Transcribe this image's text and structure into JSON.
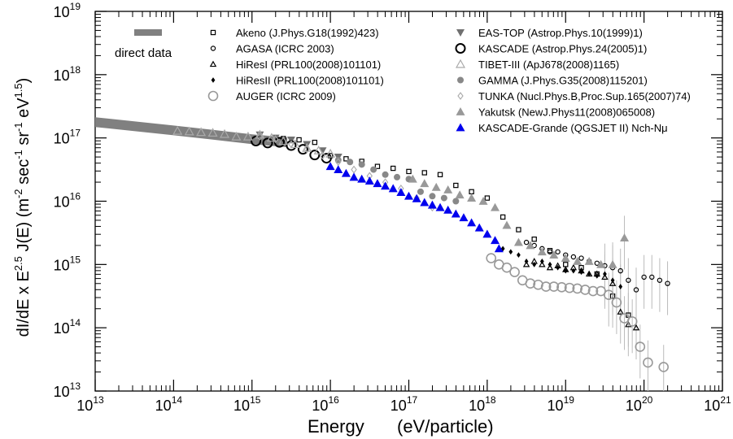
{
  "chart_data": {
    "type": "scatter",
    "xlabel": "Energy",
    "xlabel_units": "(eV/particle)",
    "ylabel_parts": [
      "dI/dE x E",
      "2.5",
      " J(E) (m",
      "-2",
      " sec",
      "-1",
      " sr",
      "-1",
      " eV",
      "1.5",
      ")"
    ],
    "xscale": "log",
    "yscale": "log",
    "xlim_log10": [
      13,
      21
    ],
    "ylim_log10": [
      13,
      19
    ],
    "x_tick_labels": [
      {
        "base": "10",
        "exp": "13",
        "log": 13
      },
      {
        "base": "10",
        "exp": "14",
        "log": 14
      },
      {
        "base": "10",
        "exp": "15",
        "log": 15
      },
      {
        "base": "10",
        "exp": "16",
        "log": 16
      },
      {
        "base": "10",
        "exp": "17",
        "log": 17
      },
      {
        "base": "10",
        "exp": "18",
        "log": 18
      },
      {
        "base": "10",
        "exp": "19",
        "log": 19
      },
      {
        "base": "10",
        "exp": "20",
        "log": 20
      },
      {
        "base": "10",
        "exp": "21",
        "log": 21
      }
    ],
    "y_tick_labels": [
      {
        "base": "10",
        "exp": "13",
        "log": 13
      },
      {
        "base": "10",
        "exp": "14",
        "log": 14
      },
      {
        "base": "10",
        "exp": "15",
        "log": 15
      },
      {
        "base": "10",
        "exp": "16",
        "log": 16
      },
      {
        "base": "10",
        "exp": "17",
        "log": 17
      },
      {
        "base": "10",
        "exp": "18",
        "log": 18
      },
      {
        "base": "10",
        "exp": "19",
        "log": 19
      }
    ],
    "grid": false,
    "legend_placement": "top",
    "direct_data": {
      "name": "direct data",
      "color": "#808080",
      "band": [
        [
          13.0,
          17.25
        ],
        [
          14.0,
          17.12
        ],
        [
          15.0,
          16.98
        ],
        [
          15.45,
          16.93
        ]
      ]
    },
    "series": [
      {
        "name": "Akeno (J.Phys.G18(1992)423)",
        "marker": "square-open",
        "color": "#000000",
        "points": [
          [
            15.4,
            16.99
          ],
          [
            15.6,
            16.97
          ],
          [
            15.8,
            16.93
          ],
          [
            16.0,
            16.72
          ],
          [
            16.2,
            16.67
          ],
          [
            16.4,
            16.63
          ],
          [
            16.6,
            16.55
          ],
          [
            16.8,
            16.52
          ],
          [
            17.0,
            16.47
          ],
          [
            17.2,
            16.45
          ],
          [
            17.4,
            16.42
          ],
          [
            17.6,
            16.25
          ],
          [
            17.8,
            16.15
          ],
          [
            18.0,
            16.05
          ],
          [
            18.2,
            15.75
          ],
          [
            18.4,
            15.55
          ],
          [
            18.6,
            15.4
          ],
          [
            18.8,
            15.22
          ],
          [
            19.0,
            15.0
          ],
          [
            19.2,
            14.95
          ],
          [
            19.4,
            14.85
          ],
          [
            19.6,
            14.5
          ],
          [
            19.8,
            14.2
          ]
        ]
      },
      {
        "name": "AGASA (ICRC 2003)",
        "marker": "circle-open-small",
        "color": "#000000",
        "points": [
          [
            18.5,
            15.35
          ],
          [
            18.6,
            15.3
          ],
          [
            18.7,
            15.25
          ],
          [
            18.8,
            15.2
          ],
          [
            18.9,
            15.2
          ],
          [
            19.0,
            15.15
          ],
          [
            19.1,
            15.12
          ],
          [
            19.2,
            15.1
          ],
          [
            19.3,
            15.05
          ],
          [
            19.4,
            15.02
          ],
          [
            19.5,
            14.98
          ],
          [
            19.6,
            14.95
          ],
          [
            19.7,
            14.9
          ],
          [
            19.8,
            14.75
          ],
          [
            19.9,
            14.6
          ],
          [
            20.0,
            14.8
          ],
          [
            20.1,
            14.8
          ],
          [
            20.2,
            14.75
          ],
          [
            20.3,
            14.7
          ]
        ]
      },
      {
        "name": "HiResI (PRL100(2008)101101)",
        "marker": "triangle-open-small",
        "color": "#000000",
        "points": [
          [
            18.5,
            15.0
          ],
          [
            18.6,
            15.05
          ],
          [
            18.7,
            15.0
          ],
          [
            18.8,
            14.95
          ],
          [
            18.9,
            14.98
          ],
          [
            19.0,
            14.92
          ],
          [
            19.1,
            14.95
          ],
          [
            19.2,
            14.9
          ],
          [
            19.3,
            14.85
          ],
          [
            19.4,
            14.85
          ],
          [
            19.5,
            14.8
          ],
          [
            19.6,
            14.7
          ],
          [
            19.7,
            14.25
          ],
          [
            19.8,
            14.05
          ],
          [
            19.9,
            14.0
          ]
        ]
      },
      {
        "name": "HiResII (PRL100(2008)101101)",
        "marker": "diamond-filled-small",
        "color": "#000000",
        "points": [
          [
            18.2,
            15.25
          ],
          [
            18.3,
            15.2
          ],
          [
            18.4,
            15.15
          ],
          [
            18.5,
            15.05
          ],
          [
            18.6,
            15.0
          ],
          [
            18.7,
            15.05
          ],
          [
            18.8,
            15.0
          ],
          [
            18.9,
            14.95
          ],
          [
            19.0,
            14.9
          ],
          [
            19.1,
            14.9
          ],
          [
            19.2,
            14.88
          ],
          [
            19.3,
            14.85
          ],
          [
            19.4,
            14.82
          ],
          [
            19.5,
            14.85
          ],
          [
            19.6,
            14.75
          ],
          [
            19.7,
            14.65
          ]
        ]
      },
      {
        "name": "AUGER (ICRC 2009)",
        "marker": "circle-open-large",
        "color": "#999999",
        "points": [
          [
            18.05,
            15.1
          ],
          [
            18.15,
            15.0
          ],
          [
            18.25,
            14.95
          ],
          [
            18.35,
            14.88
          ],
          [
            18.45,
            14.75
          ],
          [
            18.55,
            14.7
          ],
          [
            18.65,
            14.68
          ],
          [
            18.75,
            14.65
          ],
          [
            18.85,
            14.65
          ],
          [
            18.95,
            14.64
          ],
          [
            19.05,
            14.63
          ],
          [
            19.15,
            14.62
          ],
          [
            19.25,
            14.6
          ],
          [
            19.35,
            14.58
          ],
          [
            19.45,
            14.58
          ],
          [
            19.55,
            14.52
          ],
          [
            19.65,
            14.4
          ],
          [
            19.75,
            14.15
          ],
          [
            19.85,
            14.1
          ],
          [
            19.95,
            13.7
          ],
          [
            20.05,
            13.45
          ],
          [
            20.25,
            13.38
          ]
        ]
      },
      {
        "name": "EAS-TOP (Astrop.Phys.10(1999)1)",
        "marker": "triangle-down-filled",
        "color": "#707070",
        "points": [
          [
            15.1,
            17.05
          ],
          [
            15.3,
            17.0
          ],
          [
            15.5,
            16.97
          ],
          [
            15.7,
            16.9
          ],
          [
            15.9,
            16.8
          ],
          [
            16.1,
            16.7
          ]
        ]
      },
      {
        "name": "KASCADE (Astrop.Phys.24(2005)1)",
        "marker": "circle-open-bold",
        "color": "#000000",
        "points": [
          [
            15.05,
            16.95
          ],
          [
            15.2,
            16.92
          ],
          [
            15.35,
            16.93
          ],
          [
            15.5,
            16.88
          ],
          [
            15.65,
            16.82
          ],
          [
            15.8,
            16.73
          ],
          [
            15.95,
            16.68
          ]
        ]
      },
      {
        "name": "TIBET-III (ApJ678(2008)1165)",
        "marker": "triangle-open",
        "color": "#aaaaaa",
        "points": [
          [
            14.05,
            17.11
          ],
          [
            14.2,
            17.1
          ],
          [
            14.35,
            17.09
          ],
          [
            14.5,
            17.08
          ],
          [
            14.65,
            17.06
          ],
          [
            14.8,
            17.02
          ],
          [
            14.95,
            17.02
          ],
          [
            15.1,
            17.05
          ],
          [
            15.25,
            17.0
          ],
          [
            15.4,
            16.95
          ],
          [
            15.55,
            16.9
          ],
          [
            15.7,
            16.84
          ],
          [
            15.85,
            16.8
          ],
          [
            16.0,
            16.75
          ]
        ]
      },
      {
        "name": "GAMMA (J.Phys.G35(2008)115201)",
        "marker": "circle-filled",
        "color": "#888888",
        "points": [
          [
            16.1,
            16.65
          ],
          [
            16.25,
            16.62
          ],
          [
            16.4,
            16.58
          ],
          [
            16.55,
            16.5
          ],
          [
            16.7,
            16.42
          ],
          [
            16.85,
            16.38
          ],
          [
            17.0,
            16.35
          ],
          [
            17.15,
            16.15
          ],
          [
            17.3,
            16.08
          ],
          [
            17.45,
            16.05
          ],
          [
            17.6,
            16.0
          ]
        ]
      },
      {
        "name": "TUNKA (Nucl.Phys.B,Proc.Sup.165(2007)74)",
        "marker": "diamond-open",
        "color": "#aaaaaa",
        "points": [
          [
            15.1,
            17.02
          ],
          [
            15.3,
            16.98
          ],
          [
            15.5,
            16.9
          ],
          [
            15.7,
            16.82
          ],
          [
            15.9,
            16.72
          ],
          [
            16.1,
            16.62
          ],
          [
            16.3,
            16.5
          ],
          [
            16.5,
            16.4
          ],
          [
            16.7,
            16.3
          ],
          [
            16.9,
            16.2
          ],
          [
            17.1,
            16.05
          ],
          [
            17.3,
            15.9
          ]
        ]
      },
      {
        "name": "Yakutsk (NewJ.Phys11(2008)065008)",
        "marker": "triangle-filled",
        "color": "#999999",
        "points": [
          [
            17.05,
            16.35
          ],
          [
            17.2,
            16.28
          ],
          [
            17.35,
            16.22
          ],
          [
            17.5,
            16.18
          ],
          [
            17.65,
            16.1
          ],
          [
            17.8,
            16.05
          ],
          [
            17.95,
            16.0
          ],
          [
            18.1,
            15.9
          ],
          [
            18.25,
            15.62
          ],
          [
            18.4,
            15.35
          ],
          [
            18.55,
            15.3
          ],
          [
            18.7,
            15.2
          ],
          [
            18.85,
            15.15
          ],
          [
            19.0,
            15.1
          ],
          [
            19.15,
            15.05
          ],
          [
            19.3,
            15.05
          ],
          [
            19.45,
            15.0
          ],
          [
            19.6,
            15.0
          ],
          [
            19.75,
            15.42
          ]
        ]
      },
      {
        "name": "KASCADE-Grande (QGSJET II) Nch-Nμ",
        "marker": "triangle-filled",
        "color": "#0000ee",
        "points": [
          [
            16.0,
            16.55
          ],
          [
            16.1,
            16.5
          ],
          [
            16.2,
            16.44
          ],
          [
            16.3,
            16.38
          ],
          [
            16.4,
            16.35
          ],
          [
            16.5,
            16.32
          ],
          [
            16.6,
            16.28
          ],
          [
            16.7,
            16.24
          ],
          [
            16.8,
            16.2
          ],
          [
            16.9,
            16.14
          ],
          [
            17.0,
            16.08
          ],
          [
            17.1,
            16.04
          ],
          [
            17.2,
            15.98
          ],
          [
            17.3,
            15.94
          ],
          [
            17.4,
            15.9
          ],
          [
            17.5,
            15.86
          ],
          [
            17.6,
            15.8
          ],
          [
            17.7,
            15.74
          ],
          [
            17.8,
            15.66
          ],
          [
            17.9,
            15.58
          ],
          [
            18.0,
            15.48
          ],
          [
            18.1,
            15.38
          ],
          [
            18.15,
            15.25
          ]
        ]
      }
    ]
  }
}
